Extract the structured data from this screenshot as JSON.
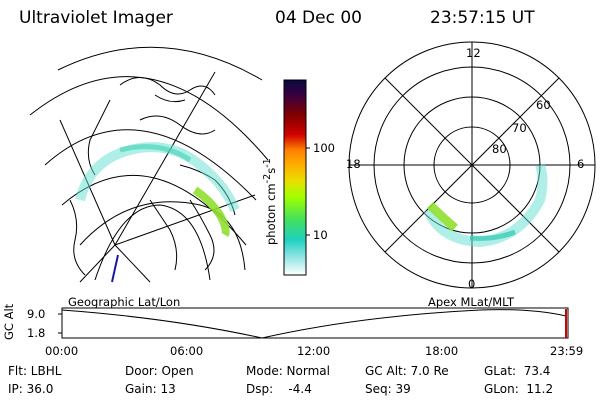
{
  "header": {
    "instrument": "Ultraviolet Imager",
    "date": "04 Dec 00",
    "time": "23:57:15 UT"
  },
  "colorbar": {
    "label": "photon cm",
    "sup1": "-2",
    "mid": "s",
    "sup2": "-1",
    "ticks": [
      "100",
      "10"
    ],
    "colors": [
      "#0a0a40",
      "#3a0040",
      "#800000",
      "#c00000",
      "#ff3030",
      "#ff8000",
      "#ffb000",
      "#e8e000",
      "#a0ff00",
      "#40e060",
      "#20d0c0",
      "#80e0e0",
      "#d0f0f0",
      "#ffffff"
    ]
  },
  "geo_panel": {
    "label": "Geographic Lat/Lon"
  },
  "polar_panel": {
    "label": "Apex MLat/MLT",
    "mlt_labels": [
      "12",
      "18",
      "6",
      "0"
    ],
    "lat_labels": [
      "60",
      "70",
      "80"
    ]
  },
  "gc_plot": {
    "label": "GC Alt",
    "yticks": [
      "9.0",
      "1.8"
    ],
    "xticks": [
      "00:00",
      "06:00",
      "12:00",
      "18:00",
      "23:59"
    ]
  },
  "info": {
    "flt": "Flt: LBHL",
    "ip": "IP: 36.0",
    "door": "Door: Open",
    "gain": "Gain: 13",
    "mode": "Mode: Normal",
    "dsp": "Dsp:    -4.4",
    "gcalt": "GC Alt: 7.0 Re",
    "seq": "Seq: 39",
    "glat": "GLat:  73.4",
    "glon": "GLon:  11.2"
  }
}
